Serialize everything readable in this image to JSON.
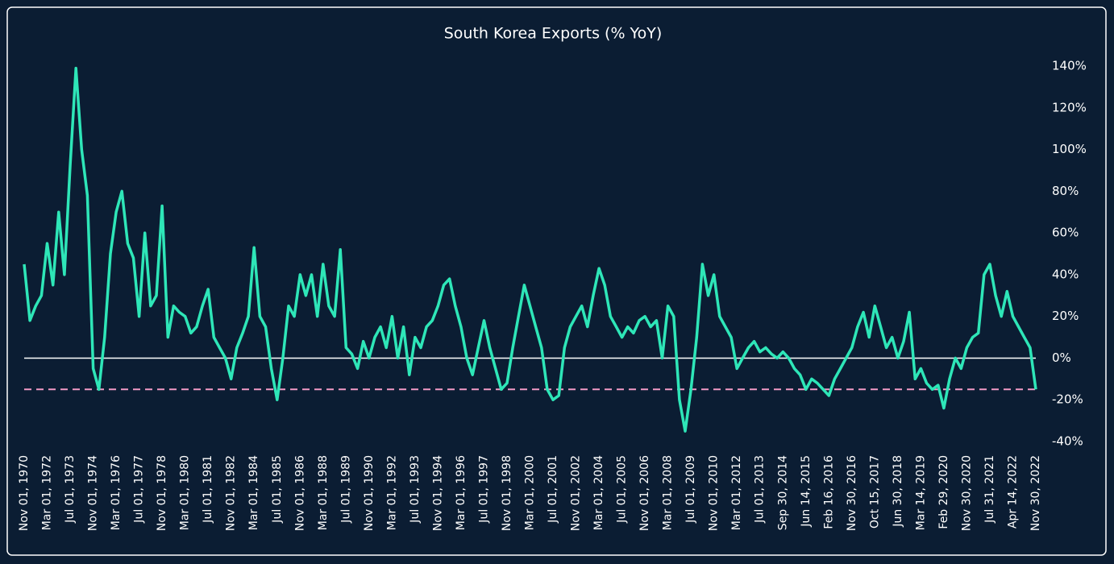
{
  "chart_data": {
    "type": "line",
    "title": "South Korea Exports (% YoY)",
    "categories": [
      "Nov 01, 1970",
      null,
      null,
      null,
      "Mar 01, 1972",
      null,
      null,
      null,
      "Jul 01, 1973",
      null,
      null,
      null,
      "Nov 01, 1974",
      null,
      null,
      null,
      "Mar 01, 1976",
      null,
      null,
      null,
      "Jul 01, 1977",
      null,
      null,
      null,
      "Nov 01, 1978",
      null,
      null,
      null,
      "Mar 01, 1980",
      null,
      null,
      null,
      "Jul 01, 1981",
      null,
      null,
      null,
      "Nov 01, 1982",
      null,
      null,
      null,
      "Mar 01, 1984",
      null,
      null,
      null,
      "Jul 01, 1985",
      null,
      null,
      null,
      "Nov 01, 1986",
      null,
      null,
      null,
      "Mar 01, 1988",
      null,
      null,
      null,
      "Jul 01, 1989",
      null,
      null,
      null,
      "Nov 01, 1990",
      null,
      null,
      null,
      "Mar 01, 1992",
      null,
      null,
      null,
      "Jul 01, 1993",
      null,
      null,
      null,
      "Nov 01, 1994",
      null,
      null,
      null,
      "Mar 01, 1996",
      null,
      null,
      null,
      "Jul 01, 1997",
      null,
      null,
      null,
      "Nov 01, 1998",
      null,
      null,
      null,
      "Mar 01, 2000",
      null,
      null,
      null,
      "Jul 01, 2001",
      null,
      null,
      null,
      "Nov 01, 2002",
      null,
      null,
      null,
      "Mar 01, 2004",
      null,
      null,
      null,
      "Jul 01, 2005",
      null,
      null,
      null,
      "Nov 01, 2006",
      null,
      null,
      null,
      "Mar 01, 2008",
      null,
      null,
      null,
      "Jul 01, 2009",
      null,
      null,
      null,
      "Nov 01, 2010",
      null,
      null,
      null,
      "Mar 01, 2012",
      null,
      null,
      null,
      "Jul 01, 2013",
      null,
      null,
      null,
      "Sep 30, 2014",
      null,
      null,
      null,
      "Jun 14, 2015",
      null,
      null,
      null,
      "Feb 16, 2016",
      null,
      null,
      null,
      "Nov 30, 2016",
      null,
      null,
      null,
      "Oct 15, 2017",
      null,
      null,
      null,
      "Jun 30, 2018",
      null,
      null,
      null,
      "Mar 14, 2019",
      null,
      null,
      null,
      "Feb 29, 2020",
      null,
      null,
      null,
      "Nov 30, 2020",
      null,
      null,
      null,
      "Jul 31, 2021",
      null,
      null,
      null,
      "Apr 14, 2022",
      null,
      null,
      null,
      "Nov 30, 2022"
    ],
    "values": [
      45,
      18,
      25,
      30,
      55,
      35,
      70,
      40,
      92,
      139,
      100,
      78,
      -5,
      -15,
      10,
      50,
      70,
      80,
      55,
      48,
      20,
      60,
      25,
      30,
      73,
      10,
      25,
      22,
      20,
      12,
      15,
      25,
      33,
      10,
      5,
      0,
      -10,
      5,
      12,
      20,
      53,
      20,
      15,
      -5,
      -20,
      0,
      25,
      20,
      40,
      30,
      40,
      20,
      45,
      25,
      20,
      52,
      5,
      2,
      -5,
      8,
      0,
      10,
      15,
      5,
      20,
      0,
      15,
      -8,
      10,
      5,
      15,
      18,
      25,
      35,
      38,
      25,
      15,
      0,
      -8,
      5,
      18,
      5,
      -5,
      -15,
      -12,
      5,
      20,
      35,
      25,
      15,
      5,
      -15,
      -20,
      -18,
      5,
      15,
      20,
      25,
      15,
      30,
      43,
      35,
      20,
      15,
      10,
      15,
      12,
      18,
      20,
      15,
      18,
      0,
      25,
      20,
      -20,
      -35,
      -15,
      10,
      45,
      30,
      40,
      20,
      15,
      10,
      -5,
      0,
      5,
      8,
      3,
      5,
      2,
      0,
      3,
      0,
      -5,
      -8,
      -15,
      -10,
      -12,
      -15,
      -18,
      -10,
      -5,
      0,
      5,
      15,
      22,
      10,
      25,
      15,
      5,
      10,
      0,
      8,
      22,
      -10,
      -5,
      -12,
      -15,
      -13,
      -24,
      -10,
      0,
      -5,
      5,
      10,
      12,
      40,
      45,
      30,
      20,
      32,
      20,
      15,
      10,
      5,
      -15
    ],
    "color": "#2ee6b8",
    "ylim": [
      -40,
      140
    ],
    "yticks": [
      {
        "value": -40,
        "label": "-40%"
      },
      {
        "value": -20,
        "label": "-20%"
      },
      {
        "value": 0,
        "label": "0%"
      },
      {
        "value": 20,
        "label": "20%"
      },
      {
        "value": 40,
        "label": "40%"
      },
      {
        "value": 60,
        "label": "60%"
      },
      {
        "value": 80,
        "label": "80%"
      },
      {
        "value": 100,
        "label": "100%"
      },
      {
        "value": 120,
        "label": "120%"
      },
      {
        "value": 140,
        "label": "140%"
      }
    ],
    "hlines": [
      {
        "value": 0,
        "color": "#ffffff",
        "dashed": false
      },
      {
        "value": -15,
        "color": "#f29ac6",
        "dashed": true
      }
    ],
    "grid": false
  }
}
